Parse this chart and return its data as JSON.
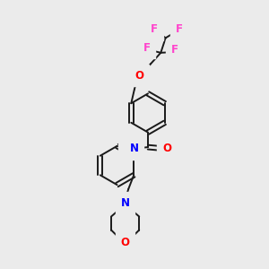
{
  "bg_color": "#ebebeb",
  "bond_color": "#1a1a1a",
  "F_color": "#ff44cc",
  "O_color": "#ff0000",
  "N_color": "#0000ff",
  "H_color": "#666666",
  "figsize": [
    3.0,
    3.0
  ],
  "dpi": 100,
  "xlim": [
    0,
    10
  ],
  "ylim": [
    0,
    10
  ]
}
